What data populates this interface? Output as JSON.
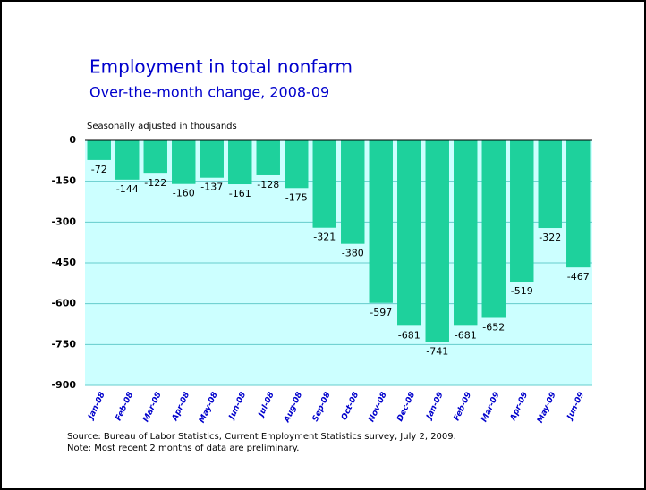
{
  "chart_data": {
    "type": "bar",
    "title": "Employment in total nonfarm",
    "subtitle": "Over-the-month change, 2008-09",
    "y_label": "Seasonally adjusted in thousands",
    "categories": [
      "Jan-08",
      "Feb-08",
      "Mar-08",
      "Apr-08",
      "May-08",
      "Jun-08",
      "Jul-08",
      "Aug-08",
      "Sep-08",
      "Oct-08",
      "Nov-08",
      "Dec-08",
      "Jan-09",
      "Feb-09",
      "Mar-09",
      "Apr-09",
      "May-09",
      "Jun-09"
    ],
    "values": [
      -72,
      -144,
      -122,
      -160,
      -137,
      -161,
      -128,
      -175,
      -321,
      -380,
      -597,
      -681,
      -741,
      -681,
      -652,
      -519,
      -322,
      -467
    ],
    "color": "#1ed19c",
    "ylim": [
      -900,
      0
    ],
    "yticks": [
      0,
      -150,
      -300,
      -450,
      -600,
      -750,
      -900
    ],
    "grid": true,
    "source": "Source:  Bureau of Labor Statistics, Current Employment Statistics survey, July 2, 2009.",
    "note": "Note:  Most recent 2 months of data are preliminary."
  }
}
